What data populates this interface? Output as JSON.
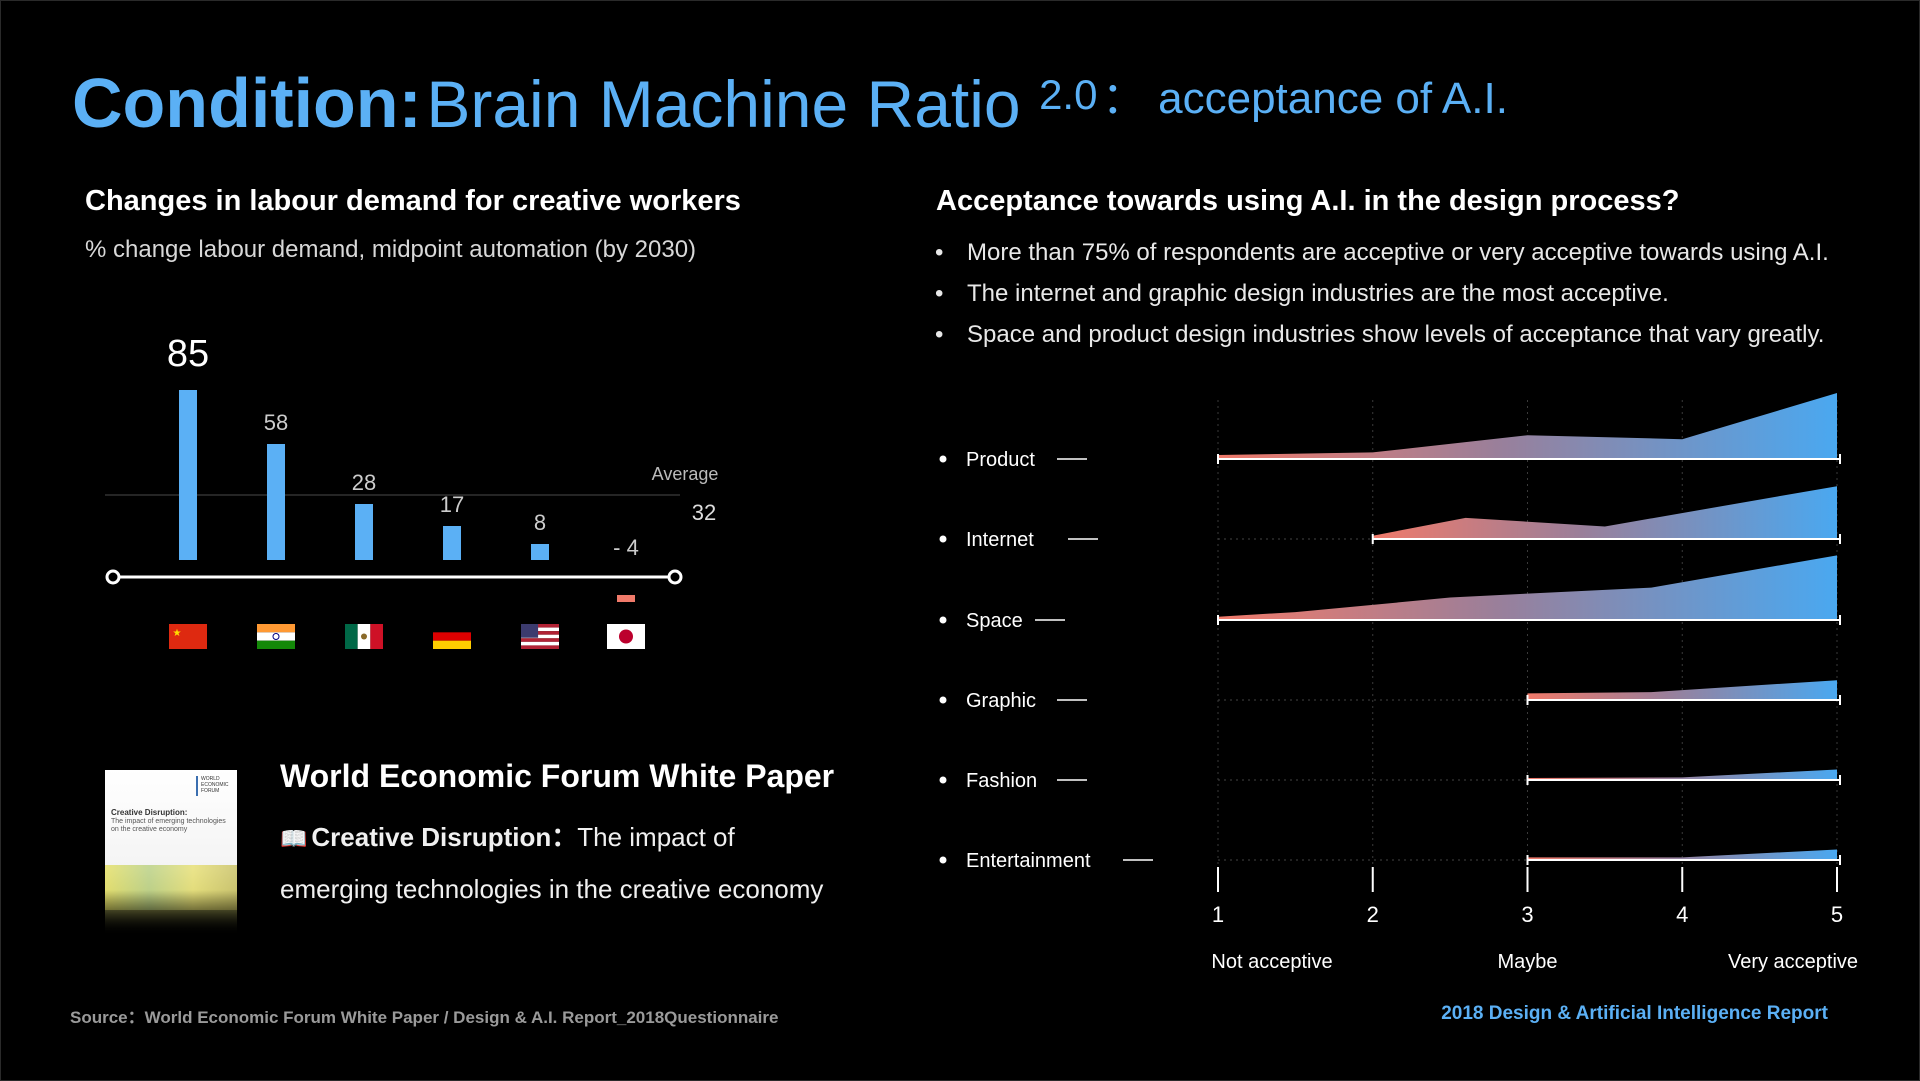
{
  "title": {
    "bold": "Condition:",
    "main": "Brain Machine Ratio",
    "sup": "2.0",
    "sub": "：  acceptance of A.I."
  },
  "left": {
    "heading": "Changes in labour demand for creative workers",
    "subheading": "% change labour demand, midpoint automation (by 2030)"
  },
  "right": {
    "heading": "Acceptance towards using A.I. in the design process?",
    "bullets": [
      "More than 75% of respondents are acceptive or very acceptive towards using A.I.",
      "The internet and graphic design industries are the most acceptive.",
      "Space and product design industries show levels of acceptance that vary greatly."
    ]
  },
  "colors": {
    "accent": "#5bb0f5",
    "bar": "#5bb0f5",
    "negative": "#f07a6a",
    "ridge_start": "#f07a6a",
    "ridge_end": "#4aa8f0"
  },
  "chart_data": [
    {
      "type": "bar",
      "categories": [
        "China",
        "India",
        "Mexico",
        "Germany",
        "United States",
        "Japan"
      ],
      "flag_icons": [
        "china-flag-icon",
        "india-flag-icon",
        "mexico-flag-icon",
        "germany-flag-icon",
        "usa-flag-icon",
        "japan-flag-icon"
      ],
      "values": [
        85,
        58,
        28,
        17,
        8,
        -4
      ],
      "value_labels": [
        "85",
        "58",
        "28",
        "17",
        "8",
        "- 4"
      ],
      "average": {
        "label": "Average",
        "value": 32,
        "value_label": "32"
      },
      "title": "Changes in labour demand for creative workers",
      "ylabel": "% change labour demand, midpoint automation (by 2030)",
      "ylim": [
        -4,
        85
      ]
    },
    {
      "type": "area",
      "title": "Acceptance towards using A.I. in the design process?",
      "x_ticks": [
        1,
        2,
        3,
        4,
        5
      ],
      "x_tick_labels": [
        "1",
        "2",
        "3",
        "4",
        "5"
      ],
      "x_axis_labels": [
        "Not acceptive",
        "Maybe",
        "Very acceptive"
      ],
      "xlim": [
        1,
        5
      ],
      "ylim": [
        0,
        1
      ],
      "series": [
        {
          "name": "Product",
          "x": [
            1,
            2,
            3,
            4,
            5
          ],
          "y": [
            0.06,
            0.1,
            0.36,
            0.3,
            1.0
          ]
        },
        {
          "name": "Internet",
          "x": [
            2,
            2.6,
            3.5,
            5
          ],
          "y": [
            0.05,
            0.32,
            0.19,
            0.8
          ]
        },
        {
          "name": "Space",
          "x": [
            1,
            1.5,
            2.5,
            3,
            3.8,
            5
          ],
          "y": [
            0.05,
            0.12,
            0.34,
            0.4,
            0.49,
            0.98
          ]
        },
        {
          "name": "Graphic",
          "x": [
            3,
            3.8,
            5
          ],
          "y": [
            0.1,
            0.12,
            0.3
          ]
        },
        {
          "name": "Fashion",
          "x": [
            3,
            4,
            5
          ],
          "y": [
            0.03,
            0.04,
            0.16
          ]
        },
        {
          "name": "Entertainment",
          "x": [
            3,
            4,
            5
          ],
          "y": [
            0.04,
            0.04,
            0.16
          ]
        }
      ]
    }
  ],
  "white_paper": {
    "title": "World Economic Forum White Paper",
    "book_icon": "book-icon",
    "subtitle_bold": "Creative Disruption：",
    "subtitle_rest": "The impact of emerging technologies in the creative economy",
    "thumb_title": "Creative Disruption:",
    "thumb_sub": "The impact of emerging technologies on the creative economy",
    "thumb_logo": "WORLD ECONOMIC FORUM"
  },
  "footer": {
    "source": "Source：World Economic Forum White Paper / Design & A.I. Report_2018Questionnaire",
    "report": "2018 Design & Artificial Intelligence Report"
  }
}
